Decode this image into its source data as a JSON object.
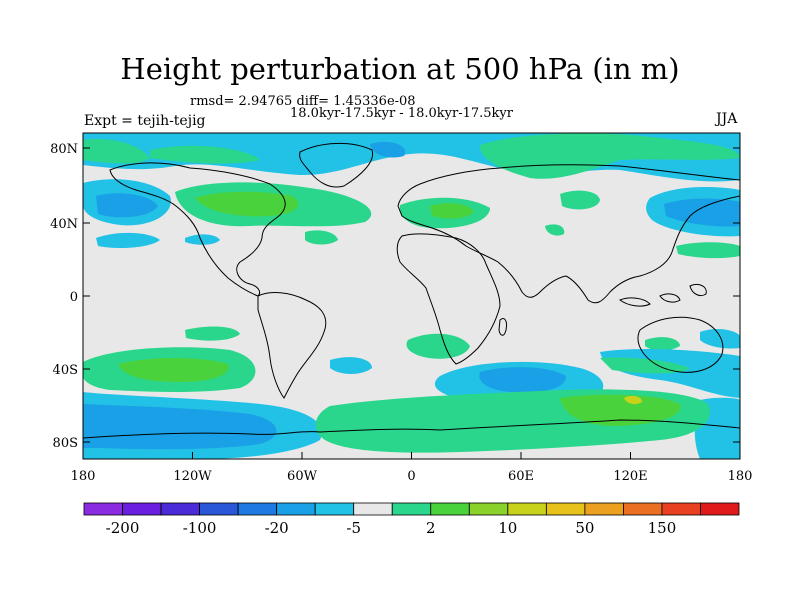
{
  "title": "Height perturbation at 500 hPa (in m)",
  "stats": "rmsd= 2.94765 diff= 1.45336e-08",
  "period": "18.0kyr-17.5kyr - 18.0kyr-17.5kyr",
  "experiment": "Expt = tejih-tejig",
  "season": "JJA",
  "lat_ticks": [
    "80N",
    "40N",
    "0",
    "40S",
    "80S"
  ],
  "lon_ticks": [
    "180",
    "120W",
    "60W",
    "0",
    "60E",
    "120E",
    "180"
  ],
  "colorbar": {
    "labels": [
      "-200",
      "-100",
      "-20",
      "-5",
      "2",
      "10",
      "50",
      "150"
    ],
    "colors": [
      "#8a2be2",
      "#6a1ee0",
      "#4b2ad8",
      "#2a56d8",
      "#1e7ae0",
      "#1aa0e6",
      "#22c2e6",
      "#e8e8e8",
      "#2ad68c",
      "#4ad23c",
      "#8ad22a",
      "#c8d21a",
      "#e6c21a",
      "#eba020",
      "#e87020",
      "#e84020",
      "#e01a1a"
    ]
  },
  "map_colors": {
    "ocean_background": "#e8e8e8",
    "neg_light": "#22c2e6",
    "neg_mid": "#1aa0e6",
    "neg_dark": "#1e7ae0",
    "pos_light": "#2ad68c",
    "pos_mid": "#4ad23c",
    "pos_high": "#c8d21a"
  }
}
